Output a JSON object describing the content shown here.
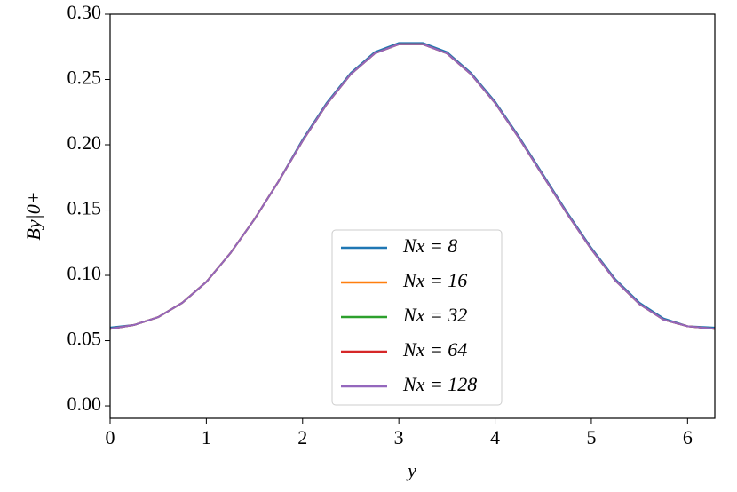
{
  "chart_data": {
    "type": "line",
    "xlabel": "y",
    "ylabel": "By|0+",
    "x": [
      0,
      0.25,
      0.5,
      0.75,
      1,
      1.25,
      1.5,
      1.75,
      2,
      2.25,
      2.5,
      2.75,
      3,
      3.25,
      3.5,
      3.75,
      4,
      4.25,
      4.5,
      4.75,
      5,
      5.25,
      5.5,
      5.75,
      6,
      6.28
    ],
    "series": [
      {
        "name": "Nx = 8",
        "color": "#1f77b4",
        "values": [
          0.06,
          0.062,
          0.068,
          0.079,
          0.095,
          0.117,
          0.143,
          0.172,
          0.204,
          0.232,
          0.255,
          0.271,
          0.278,
          0.278,
          0.271,
          0.255,
          0.233,
          0.206,
          0.177,
          0.148,
          0.121,
          0.097,
          0.079,
          0.067,
          0.061,
          0.06
        ]
      },
      {
        "name": "Nx = 16",
        "color": "#ff7f0e",
        "values": [
          0.059,
          0.062,
          0.068,
          0.079,
          0.095,
          0.117,
          0.143,
          0.172,
          0.203,
          0.231,
          0.254,
          0.27,
          0.277,
          0.277,
          0.27,
          0.254,
          0.232,
          0.205,
          0.176,
          0.147,
          0.12,
          0.096,
          0.078,
          0.066,
          0.061,
          0.059
        ]
      },
      {
        "name": "Nx = 32",
        "color": "#2ca02c",
        "values": [
          0.059,
          0.062,
          0.068,
          0.079,
          0.095,
          0.117,
          0.143,
          0.172,
          0.203,
          0.231,
          0.254,
          0.27,
          0.277,
          0.277,
          0.27,
          0.254,
          0.232,
          0.205,
          0.176,
          0.147,
          0.12,
          0.096,
          0.078,
          0.066,
          0.061,
          0.059
        ]
      },
      {
        "name": "Nx = 64",
        "color": "#d62728",
        "values": [
          0.059,
          0.062,
          0.068,
          0.079,
          0.095,
          0.117,
          0.143,
          0.172,
          0.203,
          0.231,
          0.254,
          0.27,
          0.277,
          0.277,
          0.27,
          0.254,
          0.232,
          0.205,
          0.176,
          0.147,
          0.12,
          0.096,
          0.078,
          0.066,
          0.061,
          0.059
        ]
      },
      {
        "name": "Nx = 128",
        "color": "#9467bd",
        "values": [
          0.059,
          0.062,
          0.068,
          0.079,
          0.095,
          0.117,
          0.143,
          0.172,
          0.203,
          0.231,
          0.254,
          0.27,
          0.277,
          0.277,
          0.27,
          0.254,
          0.232,
          0.205,
          0.176,
          0.147,
          0.12,
          0.096,
          0.078,
          0.066,
          0.061,
          0.059
        ]
      }
    ],
    "xlim": [
      0,
      6.283
    ],
    "xticks": [
      0,
      1,
      2,
      3,
      4,
      5,
      6
    ],
    "ylim": [
      -0.0095,
      0.3
    ],
    "yticks": [
      {
        "value": 0,
        "label": "0.00"
      },
      {
        "value": 0.05,
        "label": "0.05"
      },
      {
        "value": 0.1,
        "label": "0.10"
      },
      {
        "value": 0.15,
        "label": "0.15"
      },
      {
        "value": 0.2,
        "label": "0.20"
      },
      {
        "value": 0.25,
        "label": "0.25"
      },
      {
        "value": 0.3,
        "label": "0.30"
      }
    ],
    "grid": false,
    "legend": "lower center"
  }
}
